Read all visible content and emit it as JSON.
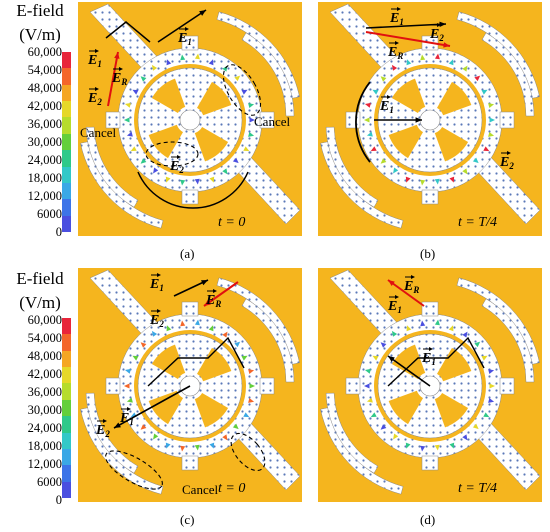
{
  "legend": {
    "title_line1": "E-field",
    "title_line2": "(V/m)",
    "ticks": [
      "60,000",
      "54,000",
      "48,000",
      "42,000",
      "36,000",
      "30,000",
      "24,000",
      "18,000",
      "12,000",
      "6000",
      "0"
    ],
    "colors": [
      "#e8253a",
      "#f4662a",
      "#f5a623",
      "#e6d829",
      "#b6dc2c",
      "#63cf3b",
      "#2fc98a",
      "#33c8c8",
      "#3aa8e6",
      "#3c74e8",
      "#4a4fe0"
    ],
    "axis_y": "y",
    "axis_x": "x"
  },
  "panels": [
    {
      "id": "a",
      "caption": "(a)",
      "time": "t = 0",
      "labels": {
        "E1": "E",
        "E1sub": "1",
        "E2": "E",
        "E2sub": "2",
        "ER": "E",
        "ERsub": "R",
        "cancel_left": "Cancel",
        "cancel_right": "Cancel",
        "E2b": "E",
        "E2bsub": "2"
      }
    },
    {
      "id": "b",
      "caption": "(b)",
      "time": "t = T/4",
      "labels": {
        "E1": "E",
        "E1sub": "1",
        "E2": "E",
        "E2sub": "2",
        "ER": "E",
        "ERsub": "R",
        "E1b": "E",
        "E1bsub": "1",
        "E2b": "E",
        "E2bsub": "2"
      }
    },
    {
      "id": "c",
      "caption": "(c)",
      "time": "t = 0",
      "labels": {
        "E1": "E",
        "E1sub": "1",
        "ER": "E",
        "ERsub": "R",
        "E2": "E",
        "E2sub": "2",
        "E2b": "E",
        "E2bsub": "2",
        "E1b": "E",
        "E1bsub": "1",
        "cancel": "Cancel"
      }
    },
    {
      "id": "d",
      "caption": "(d)",
      "time": "t = T/4",
      "labels": {
        "ER": "E",
        "ERsub": "R",
        "E1": "E",
        "E1sub": "1",
        "E1b": "E",
        "E1bsub": "1"
      }
    }
  ]
}
